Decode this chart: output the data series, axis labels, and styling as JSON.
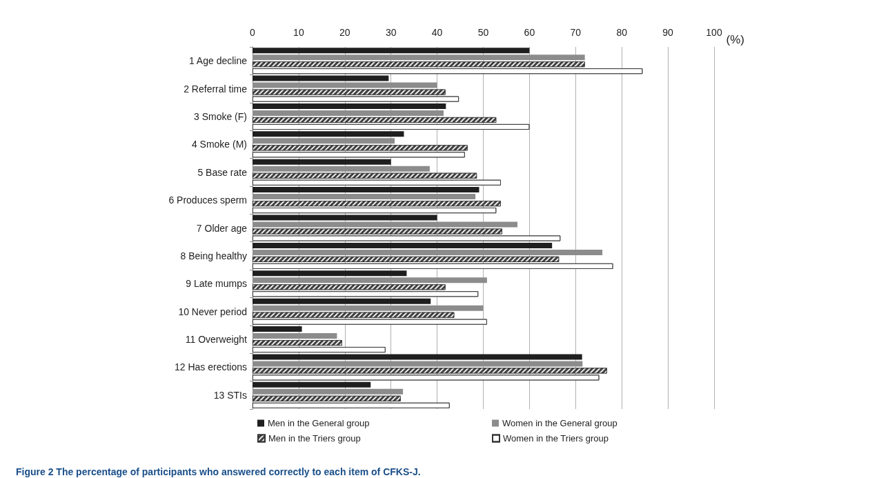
{
  "chart_data": {
    "type": "bar",
    "orientation": "horizontal",
    "title": "Figure 2 The percentage of participants who answered correctly to each item of CFKS-J.",
    "xlabel": "(%)",
    "categories": [
      "1 Age decline",
      "2 Referral time",
      "3 Smoke (F)",
      "4 Smoke (M)",
      "5 Base rate",
      "6 Produces sperm",
      "7 Older age",
      "8 Being healthy",
      "9 Late mumps",
      "10 Never period",
      "11 Overweight",
      "12 Has erections",
      "13 STIs"
    ],
    "series": [
      {
        "name": "Men in the General group",
        "color": "#1f1f1f",
        "values": [
          60,
          29.5,
          41.9,
          32.8,
          30,
          49.1,
          40,
          64.9,
          33.4,
          38.6,
          10.7,
          71.4,
          25.6
        ]
      },
      {
        "name": "Women in the General group",
        "color": "#8c8c8c",
        "values": [
          72,
          40,
          41.4,
          30.8,
          38.4,
          48.3,
          57.4,
          75.8,
          50.8,
          50,
          18.3,
          71.5,
          32.6
        ]
      },
      {
        "name": "Men in the Triers group",
        "color": "#404040",
        "values": [
          72,
          41.8,
          52.8,
          46.6,
          48.6,
          53.8,
          54.1,
          66.4,
          41.8,
          43.7,
          19.4,
          76.8,
          32.1
        ]
      },
      {
        "name": "Women in the Triers group",
        "color": "#ffffff",
        "values": [
          84.5,
          44.7,
          60,
          46,
          53.8,
          52.8,
          66.7,
          78.1,
          48.9,
          50.8,
          28.8,
          75.1,
          42.7
        ]
      }
    ],
    "xlim": [
      0,
      100
    ],
    "xticks": [
      0,
      10,
      20,
      30,
      40,
      50,
      60,
      70,
      80,
      90,
      100
    ],
    "grid": "x",
    "legend": "bottom"
  }
}
